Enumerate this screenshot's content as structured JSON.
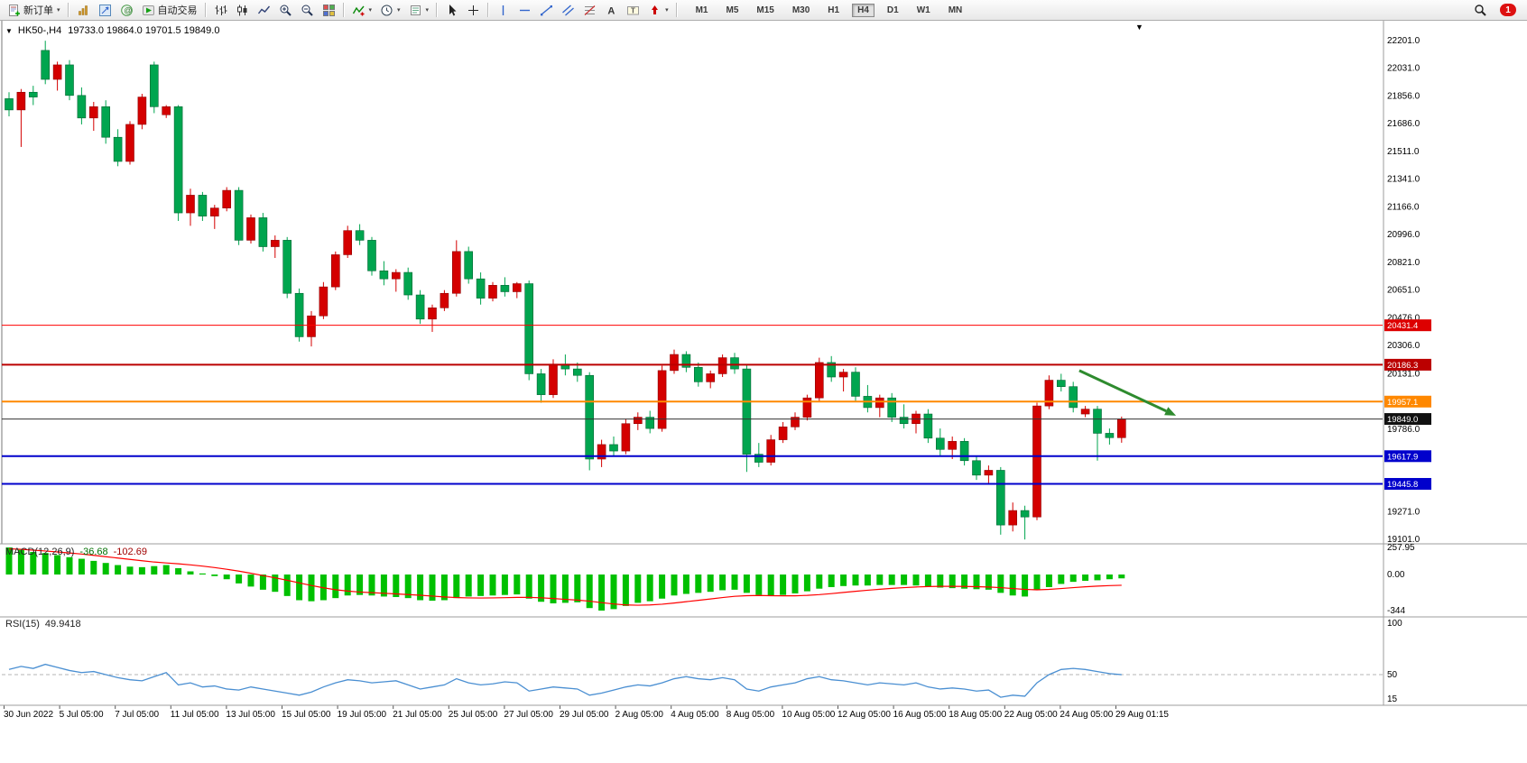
{
  "toolbar": {
    "new_order": "新订单",
    "auto_trading": "自动交易",
    "timeframes": [
      "M1",
      "M5",
      "M15",
      "M30",
      "H1",
      "H4",
      "D1",
      "W1",
      "MN"
    ],
    "active_timeframe": "H4",
    "notification_count": "1"
  },
  "chart": {
    "title_symbol": "HK50-,H4",
    "title_ohlc": "19733.0 19864.0 19701.5 19849.0",
    "price_ticks": [
      "22201.0",
      "22031.0",
      "21856.0",
      "21686.0",
      "21511.0",
      "21341.0",
      "21166.0",
      "20996.0",
      "20821.0",
      "20651.0",
      "20476.0",
      "20306.0",
      "20131.0",
      "19786.0",
      "19271.0",
      "19101.0"
    ],
    "price_tags": [
      {
        "label": "20431.4",
        "price": 20431.4,
        "bg": "#dd0000",
        "line": "#ff0000",
        "width": 1
      },
      {
        "label": "20186.3",
        "price": 20186.3,
        "bg": "#bb0000",
        "line": "#bb0000",
        "width": 2
      },
      {
        "label": "19957.1",
        "price": 19957.1,
        "bg": "#ff8800",
        "line": "#ff8800",
        "width": 2
      },
      {
        "label": "19849.0",
        "price": 19849.0,
        "bg": "#111111",
        "line": "#333333",
        "width": 1
      },
      {
        "label": "19617.9",
        "price": 19617.9,
        "bg": "#0000cc",
        "line": "#0000cc",
        "width": 2
      },
      {
        "label": "19445.8",
        "price": 19445.8,
        "bg": "#0000cc",
        "line": "#0000cc",
        "width": 2
      }
    ]
  },
  "indicators": {
    "macd": {
      "name": "MACD(12,26,9)",
      "main": "-36.68",
      "signal": "-102.69",
      "axis_top": "257.95",
      "axis_zero": "0.00",
      "axis_bottom": "-344"
    },
    "rsi": {
      "name": "RSI(15)",
      "value": "49.9418",
      "axis_top": "100",
      "axis_mid": "50",
      "axis_bottom": "15"
    }
  },
  "chart_data": {
    "type": "candlestick",
    "symbol": "HK50-",
    "timeframe": "H4",
    "title": "HK50-,H4 19733.0 19864.0 19701.5 19849.0",
    "ohlc_current": {
      "open": 19733.0,
      "high": 19864.0,
      "low": 19701.5,
      "close": 19849.0
    },
    "price_range": [
      19101,
      22201
    ],
    "up_color": "#d40000",
    "down_color": "#00a54f",
    "x_labels": [
      "30 Jun 2022",
      "5 Jul 05:00",
      "7 Jul 05:00",
      "11 Jul 05:00",
      "13 Jul 05:00",
      "15 Jul 05:00",
      "19 Jul 05:00",
      "21 Jul 05:00",
      "25 Jul 05:00",
      "27 Jul 05:00",
      "29 Jul 05:00",
      "2 Aug 05:00",
      "4 Aug 05:00",
      "8 Aug 05:00",
      "10 Aug 05:00",
      "12 Aug 05:00",
      "16 Aug 05:00",
      "18 Aug 05:00",
      "22 Aug 05:00",
      "24 Aug 05:00",
      "29 Aug 01:15"
    ],
    "h_lines": [
      20431.4,
      20186.3,
      19957.1,
      19849.0,
      19617.9,
      19445.8
    ],
    "candles": [
      [
        21840,
        21880,
        21730,
        21770
      ],
      [
        21770,
        21900,
        21540,
        21880
      ],
      [
        21880,
        21920,
        21800,
        21850
      ],
      [
        22140,
        22200,
        21930,
        21960
      ],
      [
        21960,
        22070,
        21890,
        22050
      ],
      [
        22050,
        22080,
        21830,
        21860
      ],
      [
        21860,
        21910,
        21680,
        21720
      ],
      [
        21720,
        21820,
        21640,
        21790
      ],
      [
        21790,
        21830,
        21560,
        21600
      ],
      [
        21600,
        21650,
        21420,
        21450
      ],
      [
        21450,
        21700,
        21430,
        21680
      ],
      [
        21680,
        21870,
        21650,
        21850
      ],
      [
        22050,
        22070,
        21750,
        21790
      ],
      [
        21740,
        21800,
        21720,
        21790
      ],
      [
        21790,
        21800,
        21080,
        21130
      ],
      [
        21130,
        21280,
        21050,
        21240
      ],
      [
        21240,
        21260,
        21080,
        21110
      ],
      [
        21110,
        21180,
        21030,
        21160
      ],
      [
        21160,
        21290,
        21140,
        21270
      ],
      [
        21270,
        21290,
        20930,
        20960
      ],
      [
        20960,
        21120,
        20940,
        21100
      ],
      [
        21100,
        21130,
        20890,
        20920
      ],
      [
        20920,
        20990,
        20850,
        20960
      ],
      [
        20960,
        20980,
        20600,
        20630
      ],
      [
        20630,
        20660,
        20330,
        20360
      ],
      [
        20360,
        20520,
        20300,
        20490
      ],
      [
        20490,
        20700,
        20470,
        20670
      ],
      [
        20670,
        20890,
        20650,
        20870
      ],
      [
        20870,
        21050,
        20850,
        21020
      ],
      [
        21020,
        21060,
        20930,
        20960
      ],
      [
        20960,
        20980,
        20740,
        20770
      ],
      [
        20770,
        20830,
        20680,
        20720
      ],
      [
        20720,
        20780,
        20640,
        20760
      ],
      [
        20760,
        20790,
        20590,
        20620
      ],
      [
        20620,
        20650,
        20440,
        20470
      ],
      [
        20470,
        20560,
        20390,
        20540
      ],
      [
        20540,
        20650,
        20520,
        20630
      ],
      [
        20630,
        20960,
        20610,
        20890
      ],
      [
        20890,
        20920,
        20690,
        20720
      ],
      [
        20720,
        20760,
        20560,
        20600
      ],
      [
        20600,
        20700,
        20580,
        20680
      ],
      [
        20680,
        20730,
        20610,
        20640
      ],
      [
        20640,
        20700,
        20600,
        20690
      ],
      [
        20690,
        20710,
        20090,
        20130
      ],
      [
        20130,
        20160,
        19950,
        20000
      ],
      [
        20000,
        20220,
        19980,
        20190
      ],
      [
        20190,
        20250,
        20120,
        20160
      ],
      [
        20160,
        20200,
        20080,
        20120
      ],
      [
        20120,
        20140,
        19530,
        19600
      ],
      [
        19600,
        19720,
        19550,
        19690
      ],
      [
        19690,
        19740,
        19620,
        19650
      ],
      [
        19650,
        19850,
        19630,
        19820
      ],
      [
        19820,
        19890,
        19780,
        19860
      ],
      [
        19860,
        19900,
        19760,
        19790
      ],
      [
        19790,
        20180,
        19770,
        20150
      ],
      [
        20150,
        20280,
        20130,
        20250
      ],
      [
        20250,
        20270,
        20140,
        20170
      ],
      [
        20170,
        20200,
        20050,
        20080
      ],
      [
        20080,
        20150,
        20040,
        20130
      ],
      [
        20130,
        20250,
        20110,
        20230
      ],
      [
        20230,
        20260,
        20130,
        20160
      ],
      [
        20160,
        20190,
        19520,
        19630
      ],
      [
        19630,
        19700,
        19550,
        19580
      ],
      [
        19580,
        19750,
        19560,
        19720
      ],
      [
        19720,
        19830,
        19700,
        19800
      ],
      [
        19800,
        19890,
        19780,
        19860
      ],
      [
        19860,
        20000,
        19840,
        19980
      ],
      [
        19980,
        20230,
        19960,
        20200
      ],
      [
        20200,
        20240,
        20080,
        20110
      ],
      [
        20110,
        20160,
        20020,
        20140
      ],
      [
        20140,
        20170,
        19960,
        19990
      ],
      [
        19990,
        20060,
        19890,
        19920
      ],
      [
        19920,
        20000,
        19860,
        19980
      ],
      [
        19980,
        20010,
        19830,
        19860
      ],
      [
        19860,
        19940,
        19790,
        19820
      ],
      [
        19820,
        19900,
        19760,
        19880
      ],
      [
        19880,
        19910,
        19700,
        19730
      ],
      [
        19730,
        19790,
        19620,
        19660
      ],
      [
        19660,
        19740,
        19600,
        19710
      ],
      [
        19710,
        19730,
        19560,
        19590
      ],
      [
        19590,
        19620,
        19470,
        19500
      ],
      [
        19500,
        19560,
        19440,
        19530
      ],
      [
        19530,
        19550,
        19130,
        19190
      ],
      [
        19190,
        19330,
        19150,
        19280
      ],
      [
        19280,
        19310,
        19100,
        19240
      ],
      [
        19240,
        19950,
        19220,
        19930
      ],
      [
        19930,
        20120,
        19910,
        20090
      ],
      [
        20090,
        20130,
        20020,
        20050
      ],
      [
        20050,
        20080,
        19890,
        19920
      ],
      [
        19880,
        19930,
        19860,
        19910
      ],
      [
        19910,
        19930,
        19590,
        19760
      ],
      [
        19760,
        19790,
        19690,
        19733
      ],
      [
        19733,
        19864,
        19701.5,
        19849
      ]
    ],
    "macd": {
      "hist_color": "#00c000",
      "signal_color": "#ff0000",
      "range": [
        -344,
        257.95
      ],
      "histogram": [
        257.95,
        235,
        215,
        205,
        185,
        165,
        150,
        130,
        110,
        90,
        75,
        70,
        80,
        90,
        60,
        30,
        10,
        -15,
        -45,
        -85,
        -115,
        -145,
        -165,
        -205,
        -245,
        -255,
        -245,
        -225,
        -200,
        -195,
        -200,
        -210,
        -215,
        -225,
        -245,
        -250,
        -245,
        -225,
        -210,
        -205,
        -200,
        -195,
        -190,
        -230,
        -260,
        -275,
        -270,
        -265,
        -320,
        -344,
        -330,
        -300,
        -270,
        -255,
        -230,
        -200,
        -185,
        -175,
        -165,
        -150,
        -145,
        -175,
        -195,
        -205,
        -195,
        -180,
        -160,
        -135,
        -120,
        -110,
        -105,
        -105,
        -100,
        -100,
        -100,
        -105,
        -115,
        -125,
        -130,
        -135,
        -140,
        -145,
        -175,
        -200,
        -210,
        -150,
        -120,
        -90,
        -70,
        -60,
        -55,
        -45,
        -36.68
      ],
      "signal": [
        245,
        240,
        232,
        224,
        215,
        205,
        195,
        183,
        170,
        157,
        144,
        131,
        119,
        110,
        102,
        92,
        80,
        66,
        50,
        32,
        12,
        -10,
        -32,
        -55,
        -80,
        -105,
        -127,
        -145,
        -158,
        -167,
        -173,
        -179,
        -185,
        -191,
        -198,
        -206,
        -214,
        -220,
        -223,
        -224,
        -223,
        -221,
        -218,
        -218,
        -222,
        -229,
        -237,
        -244,
        -254,
        -268,
        -281,
        -290,
        -293,
        -290,
        -283,
        -272,
        -259,
        -246,
        -233,
        -220,
        -208,
        -202,
        -200,
        -202,
        -203,
        -203,
        -199,
        -192,
        -182,
        -171,
        -160,
        -150,
        -141,
        -132,
        -125,
        -119,
        -115,
        -113,
        -113,
        -114,
        -116,
        -119,
        -125,
        -134,
        -142,
        -146,
        -142,
        -134,
        -125,
        -117,
        -111,
        -106,
        -102.69
      ]
    },
    "rsi": {
      "color": "#4a8fd2",
      "levels": [
        100,
        50,
        15
      ],
      "values": [
        55,
        58,
        56,
        60,
        57,
        54,
        52,
        53,
        50,
        47,
        45,
        44,
        48,
        52,
        40,
        42,
        38,
        39,
        36,
        35,
        38,
        36,
        34,
        32,
        30,
        33,
        38,
        42,
        45,
        44,
        42,
        43,
        44,
        40,
        36,
        38,
        40,
        46,
        42,
        40,
        41,
        43,
        42,
        34,
        36,
        38,
        37,
        36,
        30,
        32,
        35,
        38,
        40,
        39,
        42,
        46,
        48,
        46,
        45,
        47,
        45,
        36,
        34,
        38,
        40,
        42,
        46,
        48,
        45,
        44,
        42,
        40,
        42,
        41,
        40,
        42,
        38,
        36,
        37,
        36,
        34,
        35,
        28,
        30,
        29,
        42,
        50,
        55,
        56,
        55,
        53,
        51,
        49.9418
      ]
    },
    "arrow_annotation": {
      "from_bar": 88.5,
      "from_price": 20150,
      "to_bar": 96.5,
      "to_price": 19870,
      "color": "#2e8b2e"
    }
  }
}
